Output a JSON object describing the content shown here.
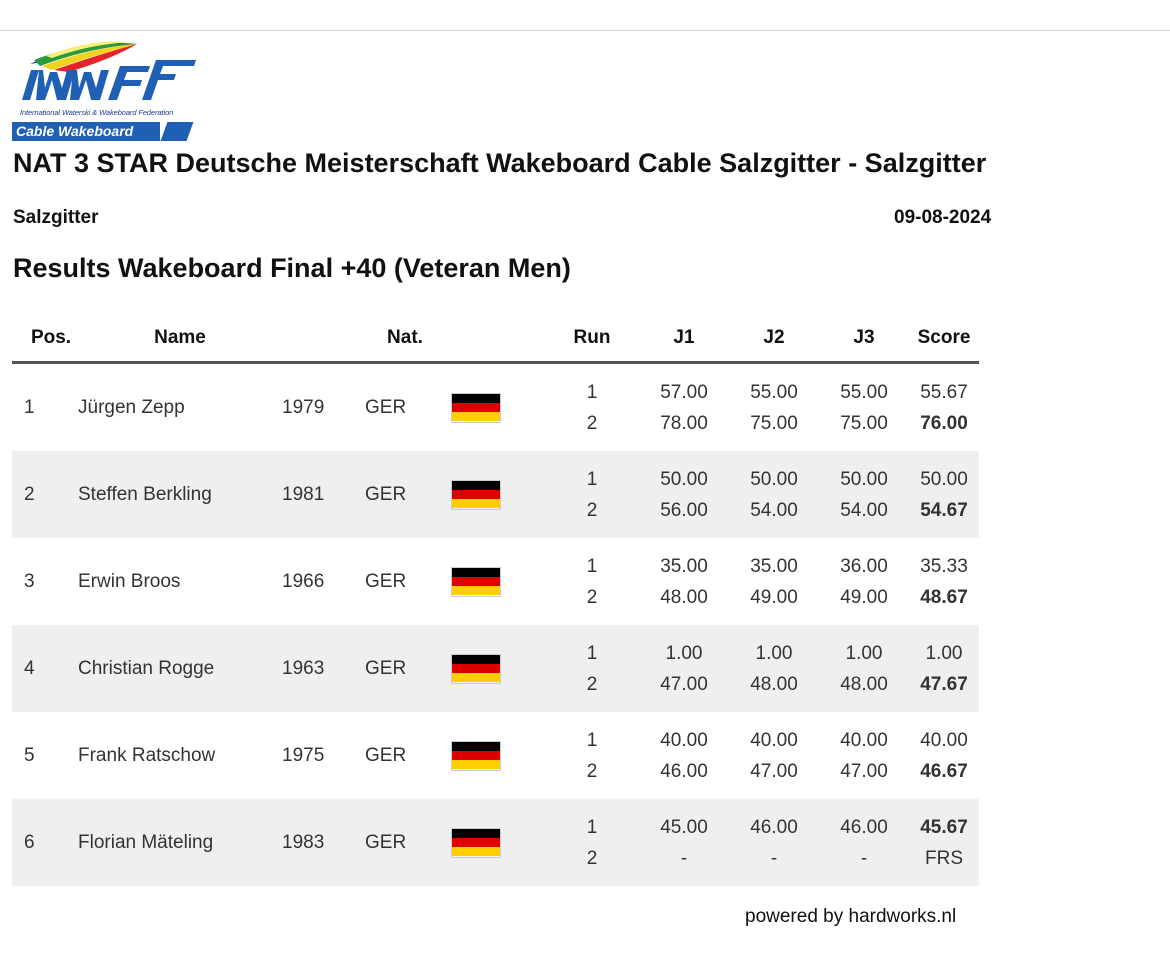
{
  "logo": {
    "letters": "IWWF",
    "subtitle": "International Waterski & Wakeboard Federation",
    "banner": "Cable Wakeboard"
  },
  "event": {
    "title": "NAT 3 STAR Deutsche Meisterschaft Wakeboard Cable Salzgitter - Salzgitter",
    "location": "Salzgitter",
    "date": "09-08-2024"
  },
  "results_title": "Results Wakeboard Final +40 (Veteran Men)",
  "columns": {
    "pos": "Pos.",
    "name": "Name",
    "nat": "Nat.",
    "run": "Run",
    "j1": "J1",
    "j2": "J2",
    "j3": "J3",
    "score": "Score"
  },
  "rows": [
    {
      "pos": "1",
      "name": "Jürgen Zepp",
      "year": "1979",
      "nat": "GER",
      "runs": [
        {
          "run": "1",
          "j1": "57.00",
          "j2": "55.00",
          "j3": "55.00",
          "score": "55.67",
          "best": false
        },
        {
          "run": "2",
          "j1": "78.00",
          "j2": "75.00",
          "j3": "75.00",
          "score": "76.00",
          "best": true
        }
      ]
    },
    {
      "pos": "2",
      "name": "Steffen Berkling",
      "year": "1981",
      "nat": "GER",
      "runs": [
        {
          "run": "1",
          "j1": "50.00",
          "j2": "50.00",
          "j3": "50.00",
          "score": "50.00",
          "best": false
        },
        {
          "run": "2",
          "j1": "56.00",
          "j2": "54.00",
          "j3": "54.00",
          "score": "54.67",
          "best": true
        }
      ]
    },
    {
      "pos": "3",
      "name": "Erwin Broos",
      "year": "1966",
      "nat": "GER",
      "runs": [
        {
          "run": "1",
          "j1": "35.00",
          "j2": "35.00",
          "j3": "36.00",
          "score": "35.33",
          "best": false
        },
        {
          "run": "2",
          "j1": "48.00",
          "j2": "49.00",
          "j3": "49.00",
          "score": "48.67",
          "best": true
        }
      ]
    },
    {
      "pos": "4",
      "name": "Christian Rogge",
      "year": "1963",
      "nat": "GER",
      "runs": [
        {
          "run": "1",
          "j1": "1.00",
          "j2": "1.00",
          "j3": "1.00",
          "score": "1.00",
          "best": false
        },
        {
          "run": "2",
          "j1": "47.00",
          "j2": "48.00",
          "j3": "48.00",
          "score": "47.67",
          "best": true
        }
      ]
    },
    {
      "pos": "5",
      "name": "Frank Ratschow",
      "year": "1975",
      "nat": "GER",
      "runs": [
        {
          "run": "1",
          "j1": "40.00",
          "j2": "40.00",
          "j3": "40.00",
          "score": "40.00",
          "best": false
        },
        {
          "run": "2",
          "j1": "46.00",
          "j2": "47.00",
          "j3": "47.00",
          "score": "46.67",
          "best": true
        }
      ]
    },
    {
      "pos": "6",
      "name": "Florian Mäteling",
      "year": "1983",
      "nat": "GER",
      "runs": [
        {
          "run": "1",
          "j1": "45.00",
          "j2": "46.00",
          "j3": "46.00",
          "score": "45.67",
          "best": true
        },
        {
          "run": "2",
          "j1": "-",
          "j2": "-",
          "j3": "-",
          "score": "FRS",
          "best": false
        }
      ]
    }
  ],
  "footer": "powered by hardworks.nl"
}
